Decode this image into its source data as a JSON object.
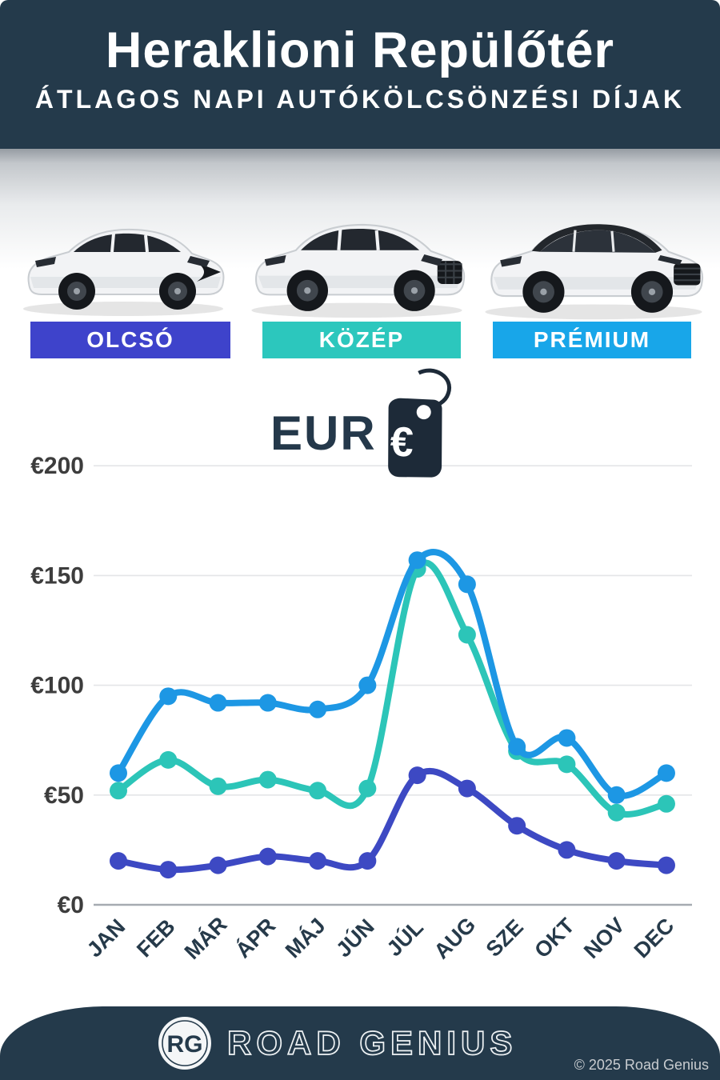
{
  "header": {
    "title": "Heraklioni Repülőtér",
    "subtitle": "ÁTLAGOS NAPI AUTÓKÖLCSÖNZÉSI DÍJAK"
  },
  "categories_bar": {
    "items": [
      {
        "label": "OLCSÓ",
        "color": "#3e43cb"
      },
      {
        "label": "KÖZÉP",
        "color": "#2cc7bd"
      },
      {
        "label": "PRÉMIUM",
        "color": "#18a6e9"
      }
    ]
  },
  "currency": {
    "label": "EUR",
    "symbol": "€"
  },
  "icons": {
    "price_tag": "price-tag-icon",
    "cars": [
      "economy-hatchback",
      "midsize-suv",
      "premium-suv"
    ]
  },
  "chart_data": {
    "type": "line",
    "title": "Heraklioni Repülőtér – átlagos napi autókölcsönzési díjak (EUR)",
    "categories": [
      "JAN",
      "FEB",
      "MÁR",
      "ÁPR",
      "MÁJ",
      "JÚN",
      "JÚL",
      "AUG",
      "SZE",
      "OKT",
      "NOV",
      "DEC"
    ],
    "series": [
      {
        "name": "PRÉMIUM",
        "color": "#1d97e4",
        "values": [
          60,
          95,
          92,
          92,
          89,
          100,
          157,
          146,
          72,
          76,
          50,
          60
        ]
      },
      {
        "name": "KÖZÉP",
        "color": "#2cc5b8",
        "values": [
          52,
          66,
          54,
          57,
          52,
          53,
          153,
          123,
          70,
          64,
          42,
          46
        ]
      },
      {
        "name": "OLCSÓ",
        "color": "#3d49c3",
        "values": [
          20,
          16,
          18,
          22,
          20,
          20,
          59,
          53,
          36,
          25,
          20,
          18
        ]
      }
    ],
    "ylabel_prefix": "€",
    "y_ticks": [
      200,
      150,
      100,
      50,
      0
    ],
    "ylim": [
      0,
      200
    ],
    "grid": true,
    "legend_position": "none",
    "axis_label_color": "#3d3d3d",
    "month_label_color": "#263a4a",
    "gridline_color": "#e4e5e7",
    "zeroline_color": "#a6abb1"
  },
  "footer": {
    "logo_initials": "RG",
    "brand": "ROAD GENIUS",
    "copyright": "© 2025 Road Genius"
  }
}
